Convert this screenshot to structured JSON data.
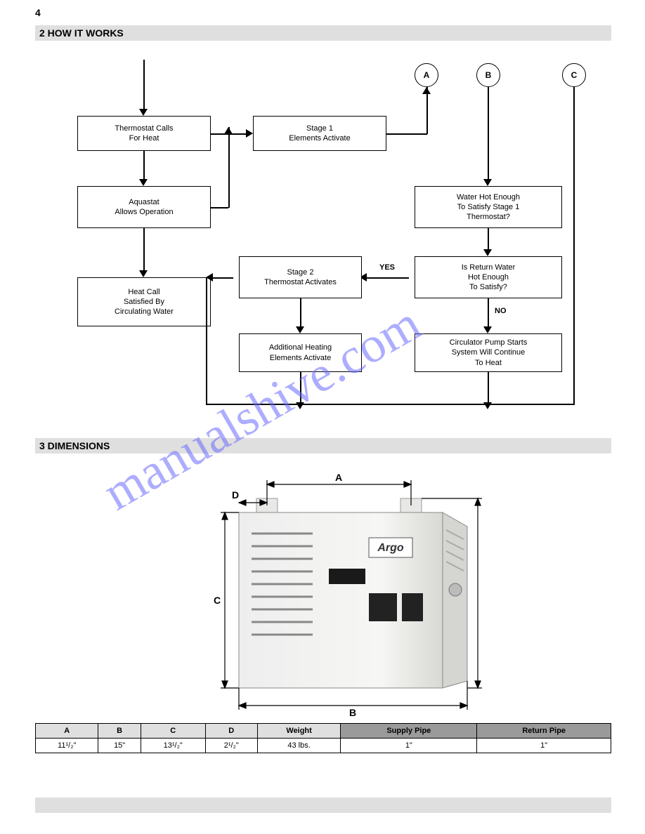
{
  "page_number": "4",
  "section2_title": "2   HOW IT WORKS",
  "section3_title": "3   DIMENSIONS",
  "flowchart": {
    "circles": {
      "A": "A",
      "B": "B",
      "C": "C"
    },
    "boxes": {
      "tstat": "Thermostat Calls\nFor Heat",
      "aquastat": "Aquastat\nAllows Operation",
      "stage1": "Stage 1\nElements Activate",
      "hot_enough": "Water Hot Enough\nTo Satisfy Stage 1\nThermostat?",
      "satisfied": "Heat Call\nSatisfied By\nCirculating Water",
      "return_water": "Is Return Water\nHot Enough\nTo Satisfy?",
      "stage2_tstat": "Stage 2\nThermostat Activates",
      "stage2_elem": "Additional Heating\nElements Activate",
      "circ_starts": "Circulator Pump Starts\nSystem Will Continue\nTo Heat"
    },
    "yes": "YES",
    "no": "NO"
  },
  "dimensions": {
    "A_label": "A",
    "B_label": "B",
    "C_label": "C",
    "D_label": "D"
  },
  "table": {
    "headers": [
      "A",
      "B",
      "C",
      "D",
      "Weight",
      "Supply Pipe",
      "Return Pipe"
    ],
    "row": [
      "11¹/₂\"",
      "15\"",
      "13¹/₂\"",
      "2¹/₂\"",
      "43 lbs.",
      "1\"",
      "1\""
    ]
  },
  "colors": {
    "bar": "#dfdfdf",
    "dark": "#9a9a9a",
    "wm": "#6b6bff"
  }
}
